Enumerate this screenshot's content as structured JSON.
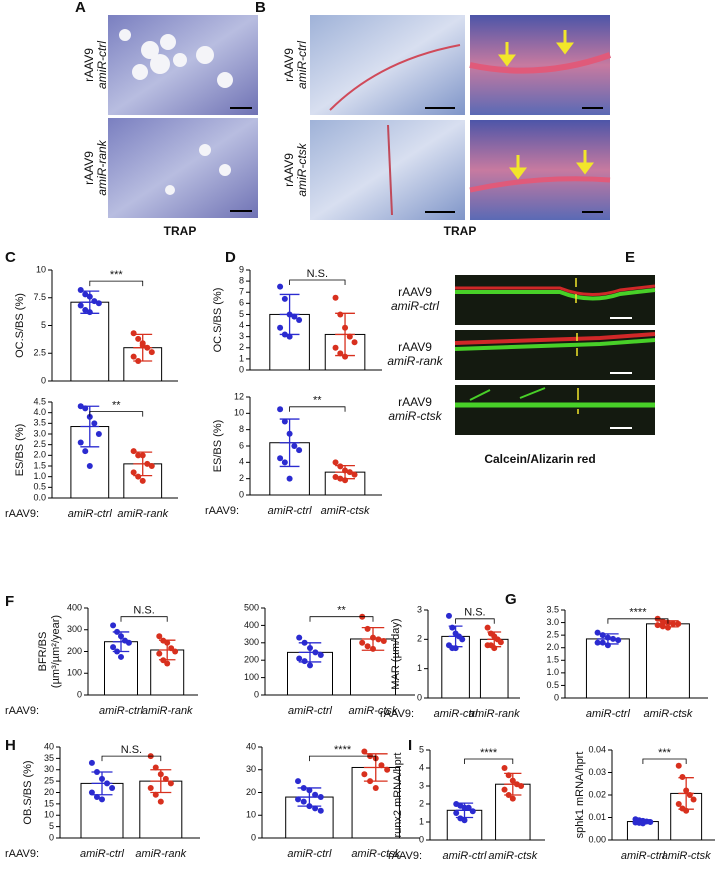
{
  "labels": {
    "letters": [
      "A",
      "B",
      "C",
      "D",
      "E",
      "F",
      "G",
      "H",
      "I"
    ],
    "a_rows": [
      [
        "rAAV9",
        "amiR-ctrl"
      ],
      [
        "rAAV9",
        "amiR-rank"
      ]
    ],
    "b_rows": [
      [
        "rAAV9",
        "amiR-ctrl"
      ],
      [
        "rAAV9",
        "amiR-ctsk"
      ]
    ],
    "e_rows": [
      [
        "rAAV9",
        "amiR-ctrl"
      ],
      [
        "rAAV9",
        "amiR-rank"
      ],
      [
        "rAAV9",
        "amiR-ctsk"
      ]
    ],
    "captions": [
      "TRAP",
      "TRAP",
      "Calcein/Alizarin red"
    ]
  },
  "chart_data": [
    {
      "type": "bar",
      "ylabel": "OC.S/BS (%)",
      "values": [
        7.1,
        3.0
      ],
      "errors": [
        1.0,
        1.2
      ],
      "point_colors": [
        "#2b2bd0",
        "#d8301e"
      ],
      "points": [
        [
          8.2,
          7.8,
          7.6,
          7.2,
          7.0,
          6.8,
          6.4,
          6.2
        ],
        [
          4.3,
          3.8,
          3.4,
          3.0,
          2.6,
          2.2,
          1.8,
          3.2
        ]
      ],
      "ylim": [
        0,
        10
      ],
      "yticks": [
        0,
        2.5,
        5,
        7.5,
        10
      ],
      "significance": "***"
    },
    {
      "type": "bar",
      "ylabel": "ES/BS (%)",
      "x_prefix": "rAAV9:",
      "categories": [
        "amiR-ctrl",
        "amiR-rank"
      ],
      "values": [
        3.35,
        1.6
      ],
      "errors": [
        0.95,
        0.55
      ],
      "point_colors": [
        "#2b2bd0",
        "#d8301e"
      ],
      "points": [
        [
          4.3,
          4.2,
          3.8,
          3.5,
          3.0,
          2.6,
          2.2,
          1.5
        ],
        [
          2.2,
          2.0,
          2.0,
          1.6,
          1.5,
          1.2,
          1.0,
          0.8
        ]
      ],
      "ylim": [
        0,
        4.5
      ],
      "yticks": [
        {
          "value": 0,
          "label": "0.0"
        },
        0.5,
        {
          "value": 1,
          "label": "1.0"
        },
        1.5,
        {
          "value": 2,
          "label": "2.0"
        },
        2.5,
        {
          "value": 3,
          "label": "3.0"
        },
        3.5,
        {
          "value": 4,
          "label": "4.0"
        },
        4.5
      ],
      "significance": "**"
    },
    {
      "type": "bar",
      "ylabel": "OC.S/BS (%)",
      "values": [
        5.0,
        3.2
      ],
      "errors": [
        1.8,
        1.9
      ],
      "point_colors": [
        "#2b2bd0",
        "#d8301e"
      ],
      "points": [
        [
          7.5,
          6.4,
          5.0,
          4.8,
          4.5,
          3.8,
          3.2,
          3.0
        ],
        [
          6.5,
          5.0,
          3.8,
          3.0,
          2.5,
          2.0,
          1.5,
          1.2
        ]
      ],
      "ylim": [
        0,
        9
      ],
      "yticks": [
        0,
        1,
        2,
        3,
        4,
        5,
        6,
        7,
        8,
        9
      ],
      "significance": "N.S."
    },
    {
      "type": "bar",
      "ylabel": "ES/BS (%)",
      "x_prefix": "rAAV9:",
      "categories": [
        "amiR-ctrl",
        "amiR-ctsk"
      ],
      "values": [
        6.4,
        2.8
      ],
      "errors": [
        2.9,
        0.8
      ],
      "point_colors": [
        "#2b2bd0",
        "#d8301e"
      ],
      "points": [
        [
          10.5,
          9.0,
          7.5,
          6.0,
          5.5,
          4.5,
          4.0,
          2.0
        ],
        [
          4.0,
          3.5,
          3.0,
          2.8,
          2.5,
          2.2,
          2.0,
          1.8
        ]
      ],
      "ylim": [
        0,
        12
      ],
      "yticks": [
        0,
        2,
        4,
        6,
        8,
        10,
        12
      ],
      "significance": "**"
    },
    {
      "type": "bar",
      "ylabel": [
        "BFR/BS",
        "(µm³/µm²/year)"
      ],
      "x_prefix": "rAAV9:",
      "categories": [
        "amiR-ctrl",
        "amiR-rank"
      ],
      "values": [
        245,
        207
      ],
      "errors": [
        45,
        45
      ],
      "point_colors": [
        "#2b2bd0",
        "#d8301e"
      ],
      "points": [
        [
          320,
          290,
          270,
          250,
          240,
          220,
          200,
          175
        ],
        [
          270,
          250,
          240,
          215,
          200,
          190,
          160,
          145
        ]
      ],
      "ylim": [
        0,
        400
      ],
      "yticks": [
        0,
        100,
        200,
        300,
        400
      ],
      "significance": "N.S."
    },
    {
      "type": "bar",
      "categories": [
        "amiR-ctrl",
        "amiR-ctsk"
      ],
      "values": [
        245,
        322
      ],
      "errors": [
        55,
        65
      ],
      "point_colors": [
        "#2b2bd0",
        "#d8301e"
      ],
      "points": [
        [
          330,
          300,
          270,
          245,
          230,
          210,
          195,
          170
        ],
        [
          450,
          380,
          330,
          320,
          310,
          300,
          280,
          265
        ]
      ],
      "ylim": [
        0,
        500
      ],
      "yticks": [
        0,
        100,
        200,
        300,
        400,
        500
      ],
      "significance": "**"
    },
    {
      "type": "bar",
      "ylabel": "MAR (µm/day)",
      "x_prefix": "rAAV9:",
      "categories": [
        "amiR-ctrl",
        "amiR-rank"
      ],
      "values": [
        2.1,
        2.0
      ],
      "errors": [
        0.35,
        0.25
      ],
      "point_colors": [
        "#2b2bd0",
        "#d8301e"
      ],
      "points": [
        [
          2.8,
          2.4,
          2.2,
          2.1,
          2.0,
          1.8,
          1.7,
          1.7
        ],
        [
          2.4,
          2.2,
          2.1,
          2.0,
          1.9,
          1.8,
          1.8,
          1.7
        ]
      ],
      "ylim": [
        0,
        3
      ],
      "yticks": [
        0,
        1,
        2,
        3
      ],
      "significance": "N.S."
    },
    {
      "type": "bar",
      "categories": [
        "amiR-ctrl",
        "amiR-ctsk"
      ],
      "values": [
        2.35,
        2.95
      ],
      "errors": [
        0.2,
        0.12
      ],
      "point_colors": [
        "#2b2bd0",
        "#d8301e"
      ],
      "points": [
        [
          2.6,
          2.5,
          2.4,
          2.35,
          2.3,
          2.2,
          2.2,
          2.1
        ],
        [
          3.15,
          3.05,
          3.0,
          2.95,
          2.95,
          2.9,
          2.85,
          2.8
        ]
      ],
      "ylim": [
        0,
        3.5
      ],
      "yticks": [
        0,
        0.5,
        {
          "value": 1,
          "label": "1.0"
        },
        1.5,
        {
          "value": 2,
          "label": "2.0"
        },
        2.5,
        {
          "value": 3,
          "label": "3.0"
        },
        3.5
      ],
      "significance": "****"
    },
    {
      "type": "bar",
      "ylabel": "OB.S/BS (%)",
      "x_prefix": "rAAV9:",
      "categories": [
        "amiR-ctrl",
        "amiR-rank"
      ],
      "values": [
        24,
        25
      ],
      "errors": [
        5,
        5
      ],
      "point_colors": [
        "#2b2bd0",
        "#d8301e"
      ],
      "points": [
        [
          33,
          29,
          26,
          24,
          22,
          20,
          18,
          17
        ],
        [
          36,
          31,
          28,
          26,
          24,
          22,
          19,
          16
        ]
      ],
      "ylim": [
        0,
        40
      ],
      "yticks": [
        0,
        5,
        10,
        15,
        20,
        25,
        30,
        35,
        40
      ],
      "significance": "N.S."
    },
    {
      "type": "bar",
      "categories": [
        "amiR-ctrl",
        "amiR-ctsk"
      ],
      "values": [
        18,
        31
      ],
      "errors": [
        4,
        6
      ],
      "point_colors": [
        "#2b2bd0",
        "#d8301e"
      ],
      "points": [
        [
          25,
          22,
          21,
          19,
          18,
          17,
          16,
          14,
          13,
          12
        ],
        [
          38,
          36,
          35,
          32,
          30,
          28,
          25,
          22
        ]
      ],
      "ylim": [
        0,
        40
      ],
      "yticks": [
        0,
        10,
        20,
        30,
        40
      ],
      "significance": "****"
    },
    {
      "type": "bar",
      "ylabel": "runx2 mRNA/hprt",
      "x_prefix": "rAAV9:",
      "categories": [
        "amiR-ctrl",
        "amiR-ctsk"
      ],
      "values": [
        1.65,
        3.1
      ],
      "errors": [
        0.4,
        0.6
      ],
      "point_colors": [
        "#2b2bd0",
        "#d8301e"
      ],
      "points": [
        [
          2.0,
          1.9,
          1.8,
          1.8,
          1.6,
          1.5,
          1.2,
          1.1
        ],
        [
          4.0,
          3.6,
          3.3,
          3.1,
          3.0,
          2.8,
          2.5,
          2.3
        ]
      ],
      "ylim": [
        0,
        5
      ],
      "yticks": [
        0,
        1,
        2,
        3,
        4,
        5
      ],
      "significance": "****"
    },
    {
      "type": "bar",
      "ylabel": "sphk1 mRNA/hprt",
      "categories": [
        "amiR-ctrl",
        "amiR-ctsk"
      ],
      "values": [
        0.0082,
        0.0207
      ],
      "errors": [
        0.0008,
        0.007
      ],
      "point_colors": [
        "#2b2bd0",
        "#d8301e"
      ],
      "points": [
        [
          0.0092,
          0.0088,
          0.0085,
          0.0082,
          0.008,
          0.0078,
          0.0076,
          0.0074
        ],
        [
          0.033,
          0.028,
          0.022,
          0.02,
          0.018,
          0.016,
          0.014,
          0.013
        ]
      ],
      "ylim": [
        0,
        0.04
      ],
      "yticks": [
        {
          "value": 0,
          "label": "0.00"
        },
        0.01,
        0.02,
        0.03,
        0.04
      ],
      "significance": "***"
    }
  ]
}
